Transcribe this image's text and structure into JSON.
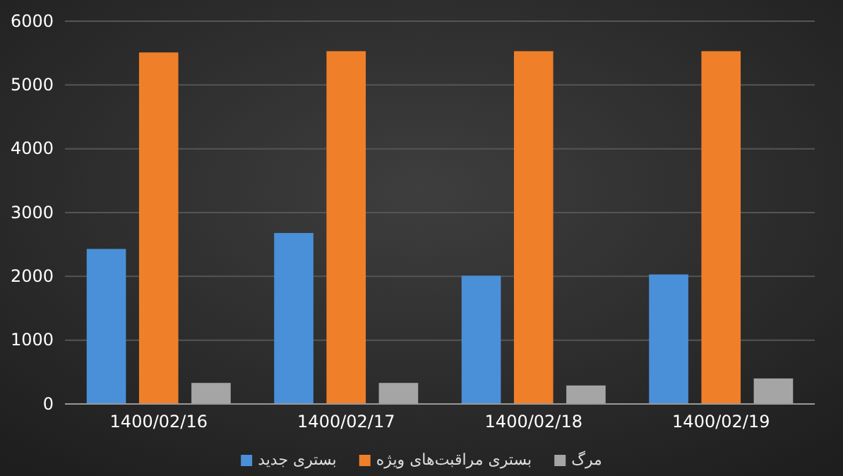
{
  "chart_data": {
    "type": "bar",
    "categories": [
      "1400/02/16",
      "1400/02/17",
      "1400/02/18",
      "1400/02/19"
    ],
    "series": [
      {
        "name": "بستری جدید",
        "color": "#4a90d9",
        "values": [
          2430,
          2680,
          2010,
          2030
        ]
      },
      {
        "name": "بستری مراقبت‌های ویژه",
        "color": "#f07f2a",
        "values": [
          5510,
          5530,
          5530,
          5530
        ]
      },
      {
        "name": "مرگ",
        "color": "#a5a5a5",
        "values": [
          330,
          330,
          290,
          400
        ]
      }
    ],
    "ylim": [
      0,
      6000
    ],
    "yticks": [
      0,
      1000,
      2000,
      3000,
      4000,
      5000,
      6000
    ],
    "grid": "y",
    "legend": "bottom"
  }
}
